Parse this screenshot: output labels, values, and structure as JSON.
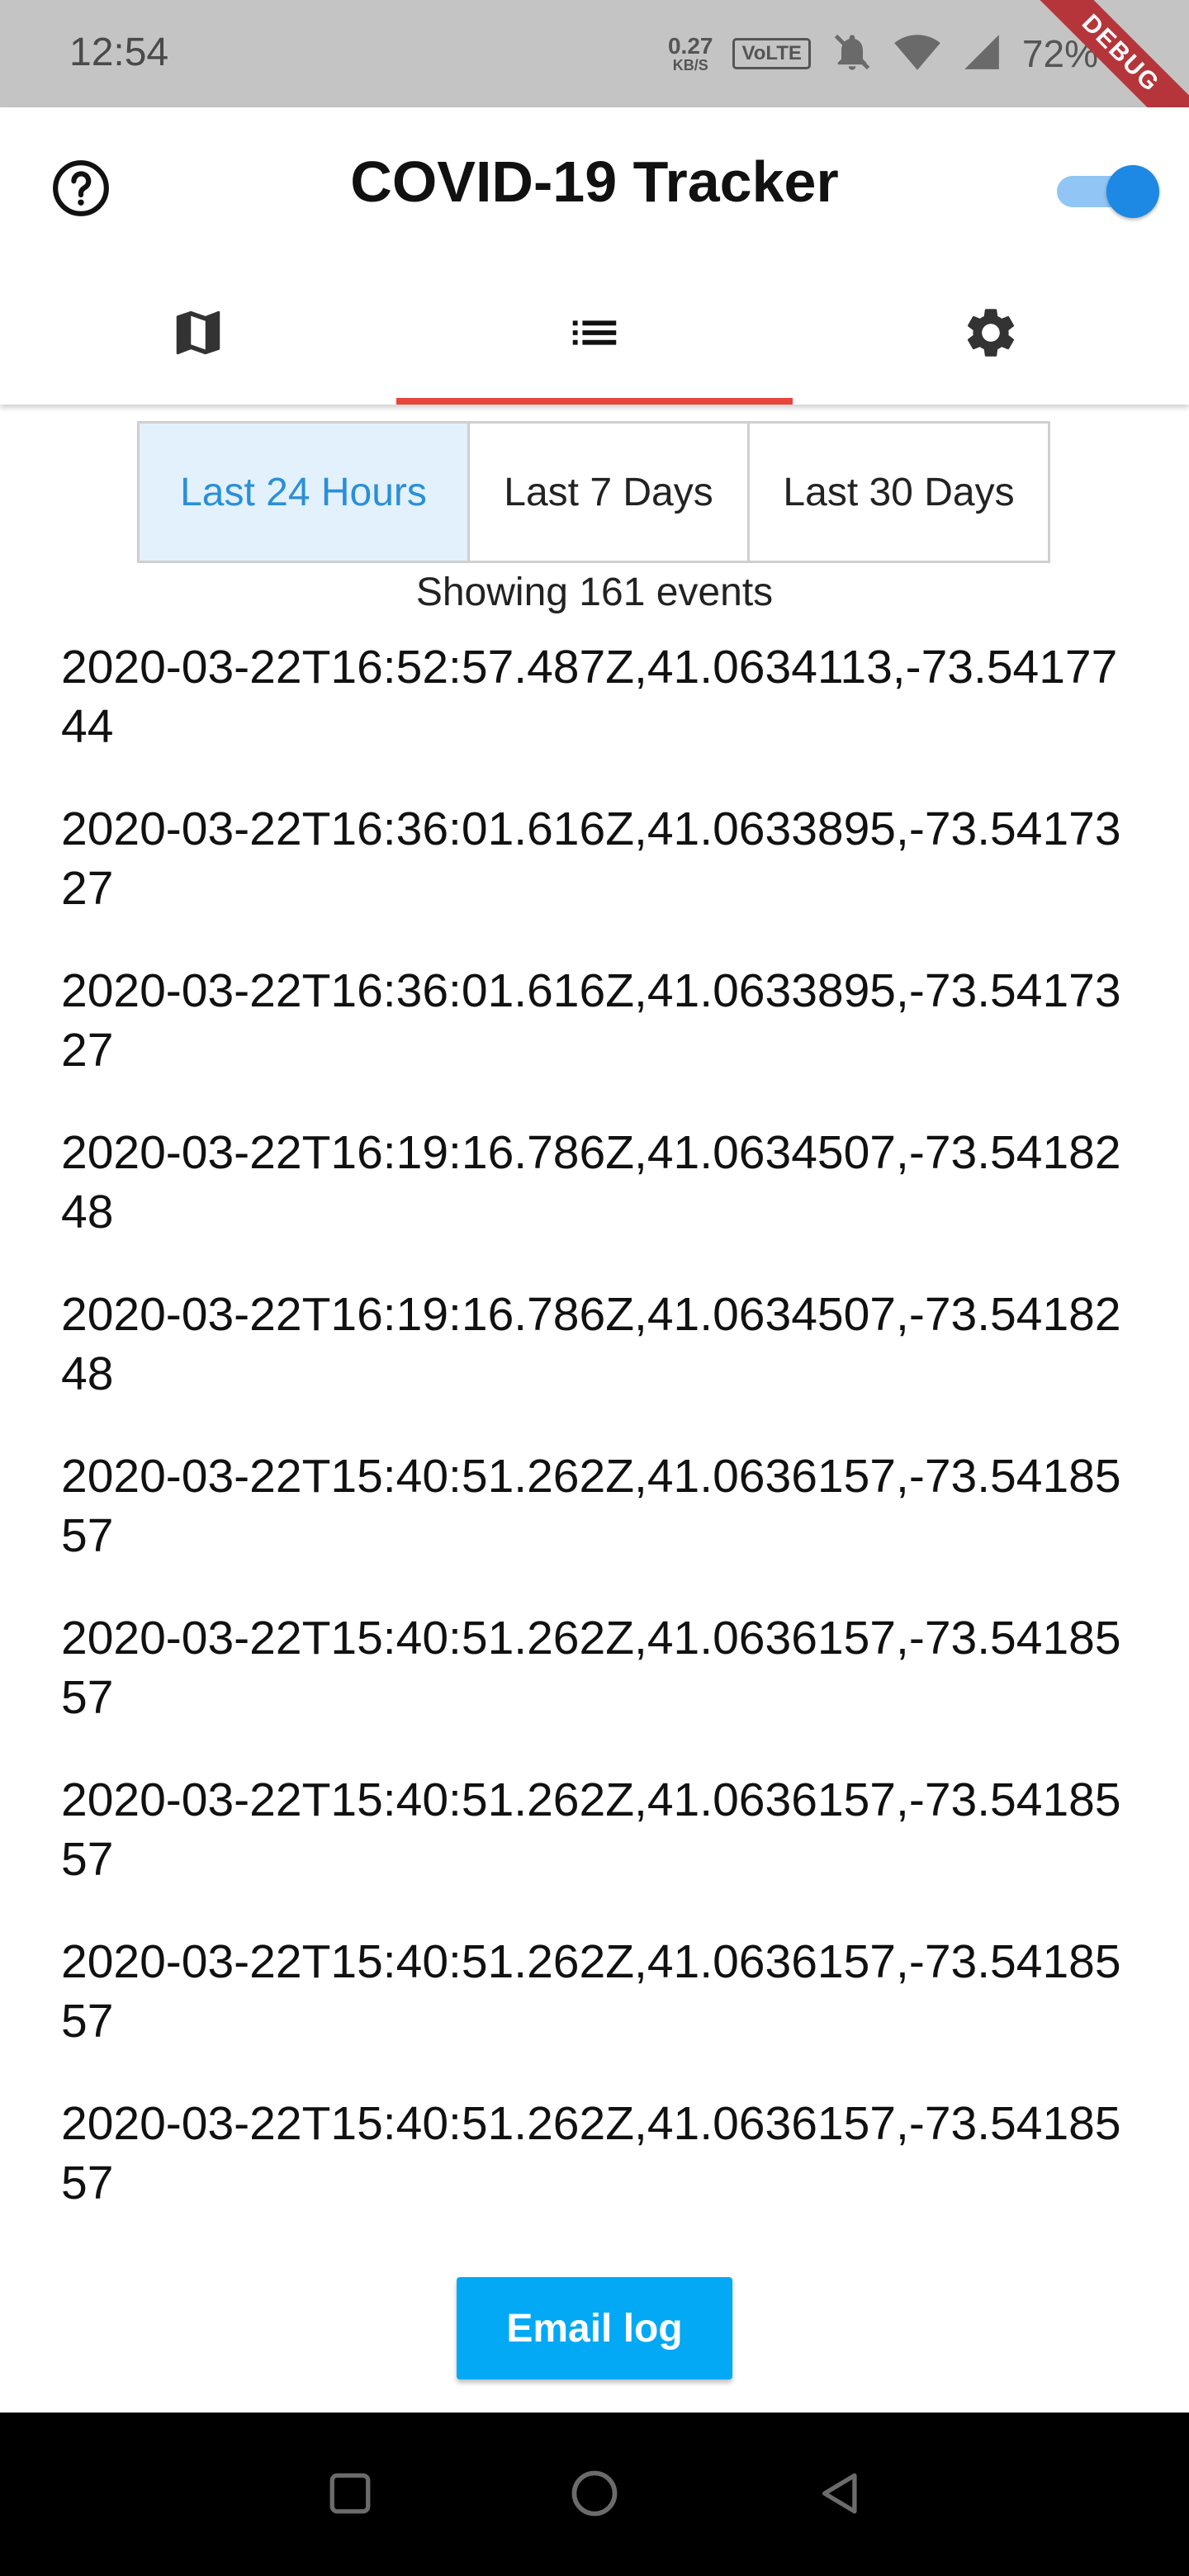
{
  "status_bar": {
    "time": "12:54",
    "net_speed_value": "0.27",
    "net_speed_unit": "KB/S",
    "volte": "VoLTE",
    "battery": "72%",
    "icons": [
      "mute-bell-icon",
      "wifi-icon",
      "signal-icon",
      "battery-icon"
    ]
  },
  "debug_banner": "DEBUG",
  "app_bar": {
    "title": "COVID-19 Tracker",
    "help_icon": "help-circle-icon",
    "toggle_on": true,
    "accent_color": "#1e88e5"
  },
  "tabs": [
    {
      "icon": "map-icon",
      "active": false
    },
    {
      "icon": "list-icon",
      "active": true
    },
    {
      "icon": "settings-gear-icon",
      "active": false
    }
  ],
  "tab_indicator_color": "#e8453c",
  "range_selector": {
    "options": [
      "Last 24 Hours",
      "Last 7 Days",
      "Last 30 Days"
    ],
    "selected": "Last 24 Hours"
  },
  "summary": "Showing 161 events",
  "log_entries": [
    "2020-03-22T16:52:57.487Z,41.0634113,-73.5417744",
    "2020-03-22T16:36:01.616Z,41.0633895,-73.5417327",
    "2020-03-22T16:36:01.616Z,41.0633895,-73.5417327",
    "2020-03-22T16:19:16.786Z,41.0634507,-73.5418248",
    "2020-03-22T16:19:16.786Z,41.0634507,-73.5418248",
    "2020-03-22T15:40:51.262Z,41.0636157,-73.5418557",
    "2020-03-22T15:40:51.262Z,41.0636157,-73.5418557",
    "2020-03-22T15:40:51.262Z,41.0636157,-73.5418557",
    "2020-03-22T15:40:51.262Z,41.0636157,-73.5418557",
    "2020-03-22T15:40:51.262Z,41.0636157,-73.5418557"
  ],
  "email_button": {
    "label": "Email log",
    "color": "#03a9f4"
  },
  "nav_bar": [
    "recents-square-icon",
    "home-circle-icon",
    "back-triangle-icon"
  ]
}
